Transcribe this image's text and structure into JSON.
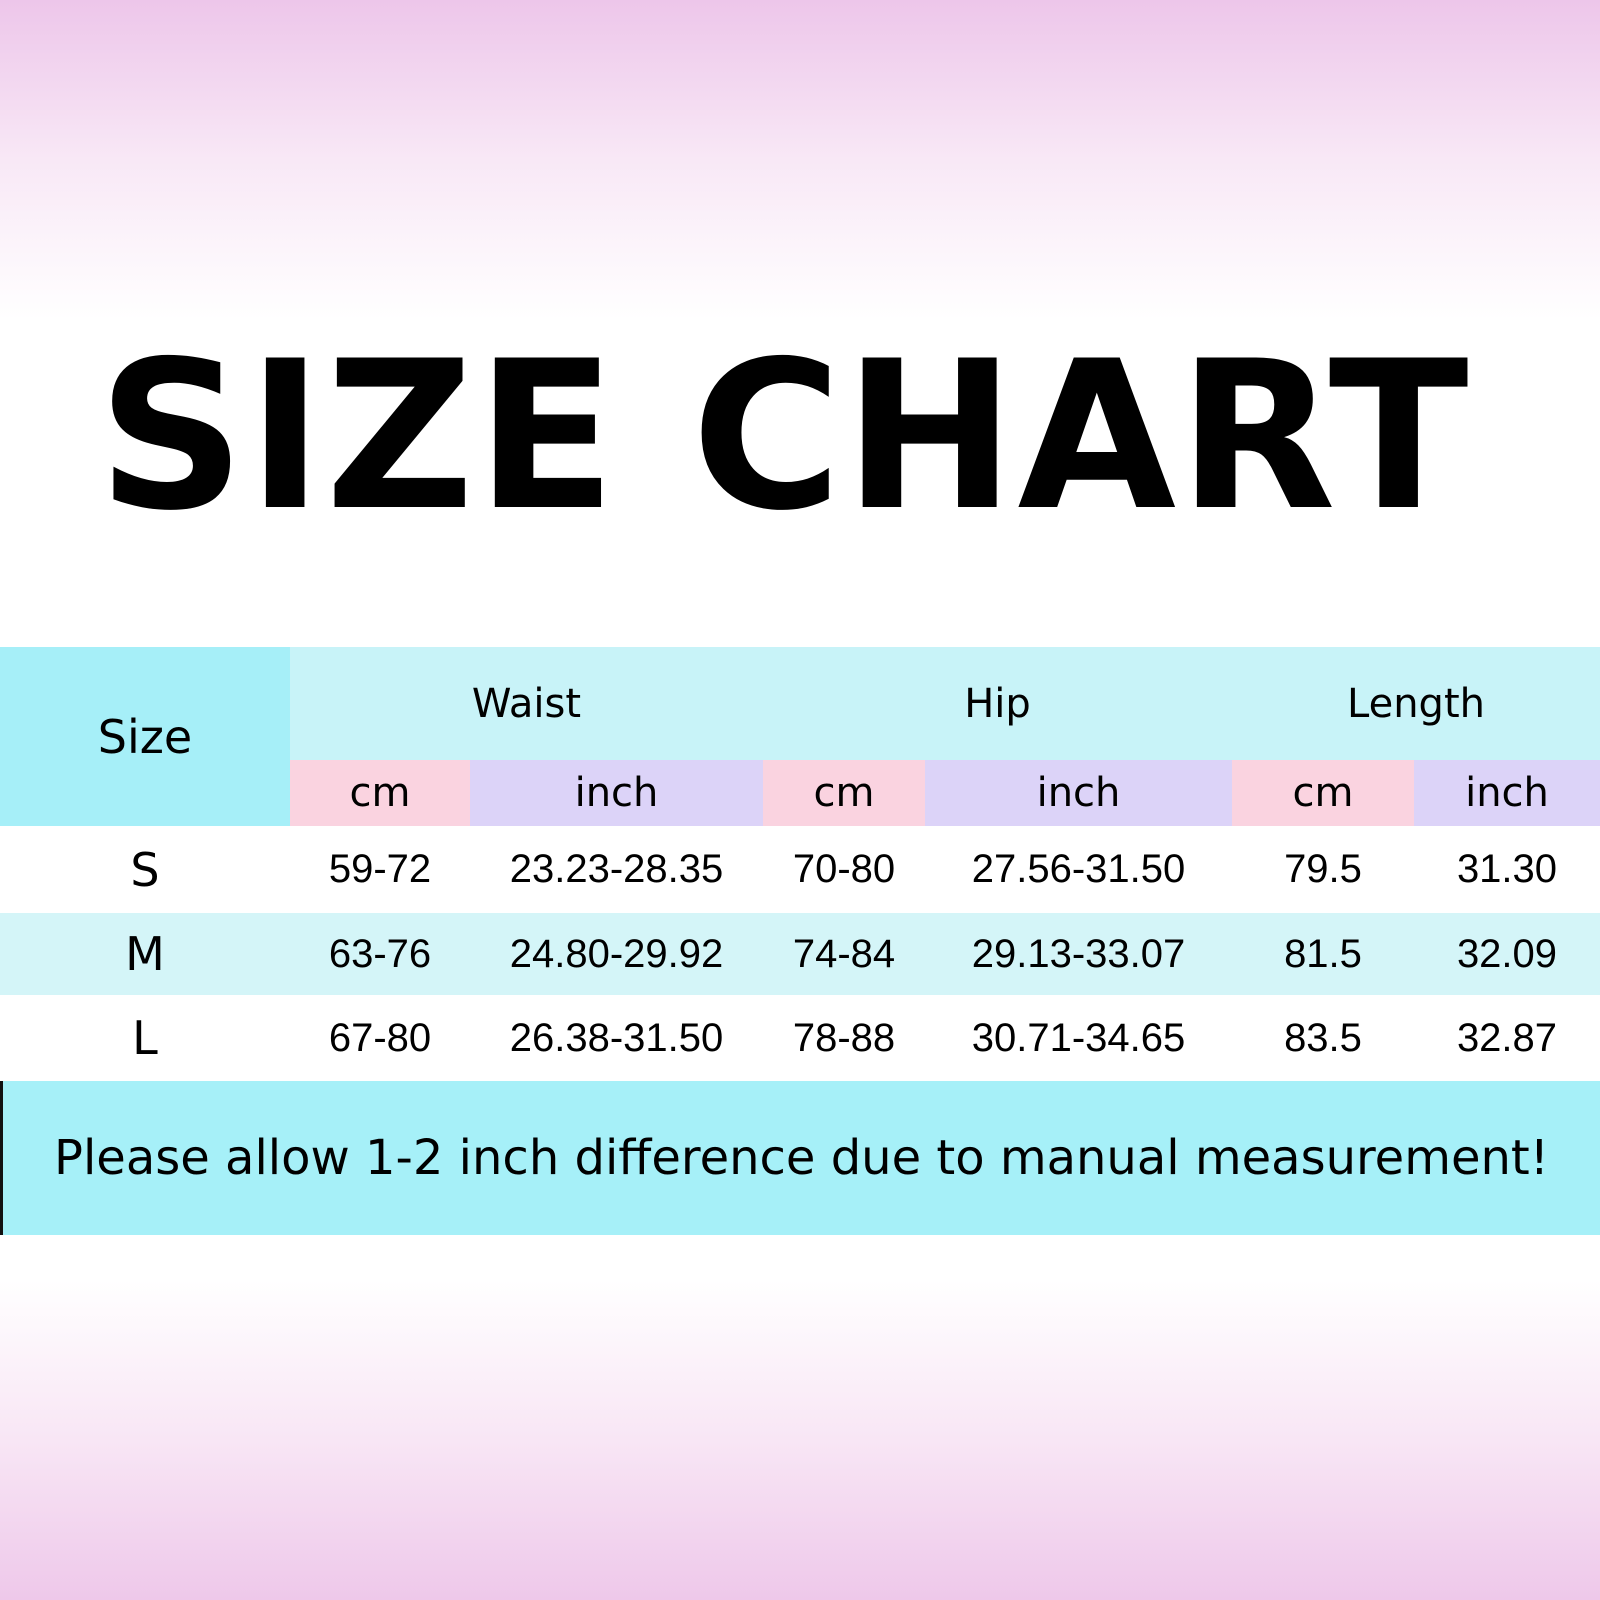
{
  "title": "SIZE CHART",
  "colors": {
    "size_header": "#a6eff8",
    "group_header": "#c8f3f8",
    "cm_header": "#fad3e0",
    "inch_header": "#dcd3f8",
    "alt_row": "#d4f5f8",
    "note_bg": "#a6f0f8"
  },
  "chart_data": {
    "type": "table",
    "size_header": "Size",
    "groups": [
      "Waist",
      "Hip",
      "Length"
    ],
    "units": [
      "cm",
      "inch",
      "cm",
      "inch",
      "cm",
      "inch"
    ],
    "rows": [
      {
        "size": "S",
        "values": [
          "59-72",
          "23.23-28.35",
          "70-80",
          "27.56-31.50",
          "79.5",
          "31.30"
        ]
      },
      {
        "size": "M",
        "values": [
          "63-76",
          "24.80-29.92",
          "74-84",
          "29.13-33.07",
          "81.5",
          "32.09"
        ]
      },
      {
        "size": "L",
        "values": [
          "67-80",
          "26.38-31.50",
          "78-88",
          "30.71-34.65",
          "83.5",
          "32.87"
        ]
      }
    ]
  },
  "note": "Please allow 1-2 inch difference due to manual measurement!"
}
